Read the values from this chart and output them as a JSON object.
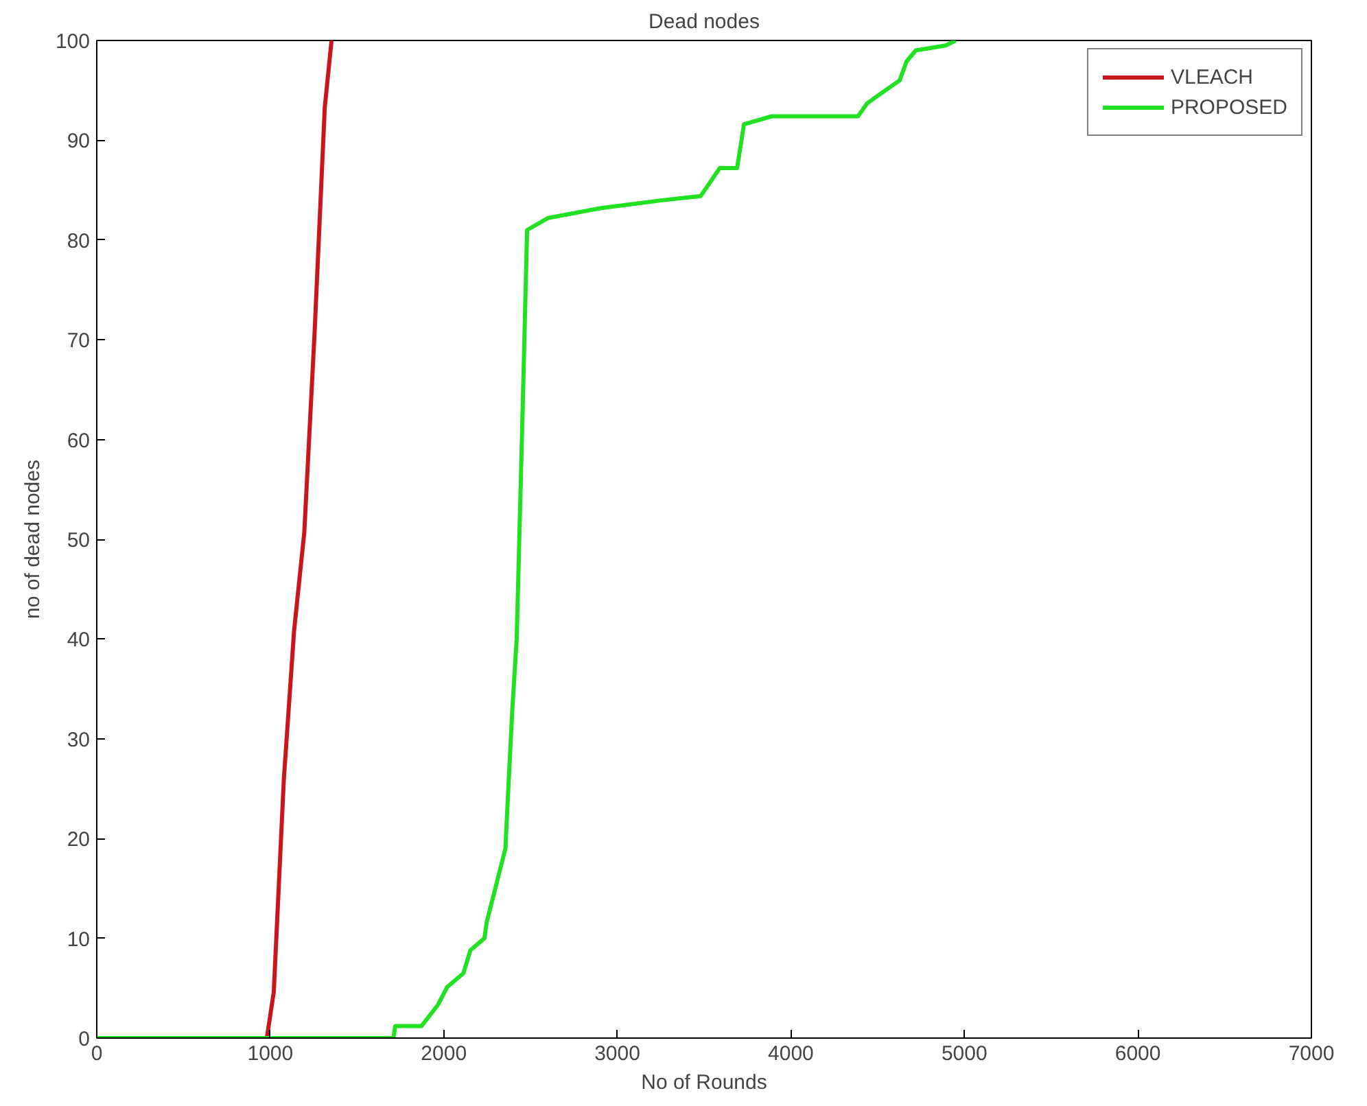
{
  "chart_data": {
    "type": "line",
    "title": "Dead nodes",
    "xlabel": "No of Rounds",
    "ylabel": "no of dead nodes",
    "xlim": [
      0,
      7000
    ],
    "ylim": [
      0,
      100
    ],
    "xticks": [
      0,
      1000,
      2000,
      3000,
      4000,
      5000,
      6000,
      7000
    ],
    "yticks": [
      0,
      10,
      20,
      30,
      40,
      50,
      60,
      70,
      80,
      90,
      100
    ],
    "grid": false,
    "legend": "top right",
    "marker": "none",
    "line_style": "solid",
    "series": [
      {
        "name": "VLEACH",
        "color": "#c8161d",
        "x": [
          0,
          980,
          1020,
          1078,
          1137,
          1196,
          1255,
          1314,
          1353
        ],
        "values": [
          0,
          0,
          4.6,
          25.9,
          40.8,
          50.7,
          70.6,
          93.3,
          100
        ]
      },
      {
        "name": "PROPOSED",
        "color": "#22e022",
        "x": [
          0,
          1710,
          1720,
          1871,
          1965,
          2019,
          2113,
          2153,
          2234,
          2247,
          2301,
          2355,
          2368,
          2395,
          2420,
          2450,
          2480,
          2600,
          2907,
          3267,
          3480,
          3590,
          3690,
          3730,
          3890,
          4387,
          4440,
          4520,
          4627,
          4667,
          4720,
          4893,
          4950
        ],
        "values": [
          0,
          0,
          1.2,
          1.2,
          3.3,
          5.1,
          6.5,
          8.8,
          10,
          11.6,
          15.3,
          19,
          23.7,
          33,
          40,
          60,
          81,
          82.2,
          83.2,
          84,
          84.4,
          87.2,
          87.2,
          91.6,
          92.4,
          92.4,
          93.7,
          94.7,
          96,
          97.9,
          99,
          99.5,
          100
        ]
      }
    ]
  }
}
